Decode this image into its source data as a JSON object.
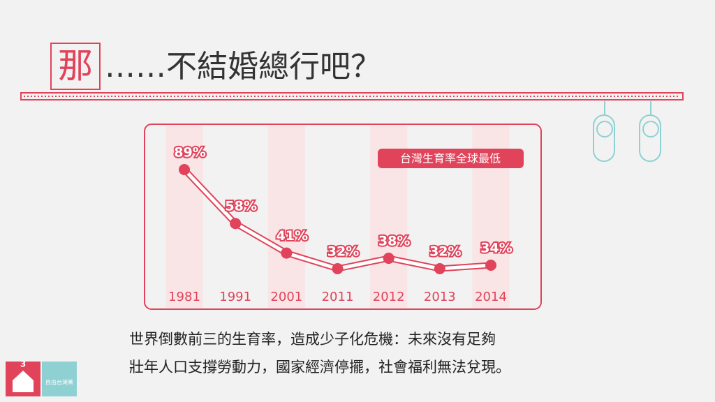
{
  "header": {
    "highlight": "那",
    "rest": "……不結婚總行吧？"
  },
  "chart_data": {
    "type": "line",
    "categories": [
      "1981",
      "1991",
      "2001",
      "2011",
      "2012",
      "2013",
      "2014"
    ],
    "values": [
      89,
      58,
      41,
      32,
      38,
      32,
      34
    ],
    "value_labels": [
      "89%",
      "58%",
      "41%",
      "32%",
      "38%",
      "32%",
      "34%"
    ],
    "color": "#e0435a",
    "annotation": "台灣生育率全球最低"
  },
  "caption": {
    "lines": [
      "世界倒數前三的生育率，造成少子化危機：未來沒有足夠",
      "壯年人口支撐勞動力，國家經濟停擺，社會福利無法兌現。"
    ]
  },
  "logo": {
    "number": "3",
    "name": "自由台灣黨"
  }
}
